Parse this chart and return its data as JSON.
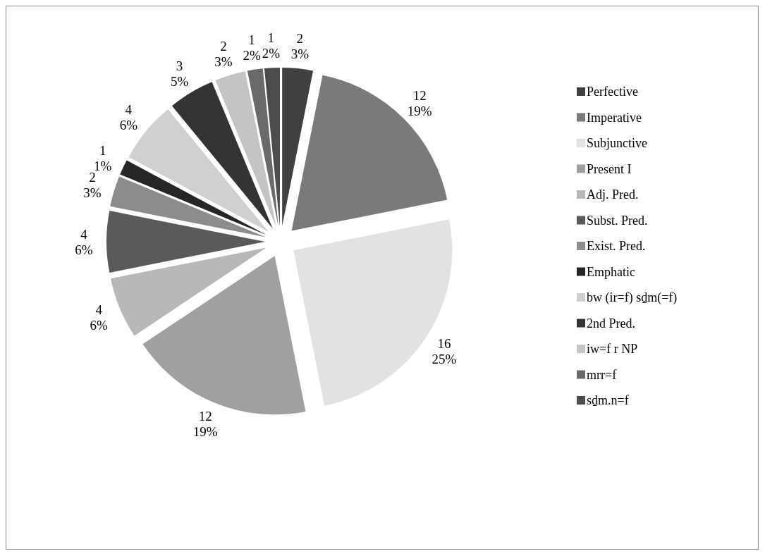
{
  "chart_data": {
    "type": "pie",
    "categories": [
      "Perfective",
      "Imperative",
      "Subjunctive",
      "Present I",
      "Adj. Pred.",
      "Subst. Pred.",
      "Exist. Pred.",
      "Emphatic",
      "bw (ir=f) sḏm(=f)",
      "2nd Pred.",
      "iw=f r NP",
      "mrr=f",
      "sḏm.n=f"
    ],
    "values": [
      2,
      12,
      16,
      12,
      4,
      4,
      2,
      1,
      4,
      3,
      2,
      1,
      1
    ],
    "value_labels": [
      "2\n3%",
      "12\n19%",
      "16\n25%",
      "12\n19%",
      "4\n6%",
      "4\n6%",
      "2\n3%",
      "1\n1%",
      "4\n6%",
      "3\n5%",
      "2\n3%",
      "1\n2%",
      "1\n2%"
    ],
    "colors": [
      "#404040",
      "#7a7a7a",
      "#e2e2e2",
      "#a0a0a0",
      "#b8b8b8",
      "#5a5a5a",
      "#8c8c8c",
      "#262626",
      "#d0d0d0",
      "#333333",
      "#c4c4c4",
      "#6a6a6a",
      "#4c4c4c"
    ],
    "legend": "right"
  }
}
